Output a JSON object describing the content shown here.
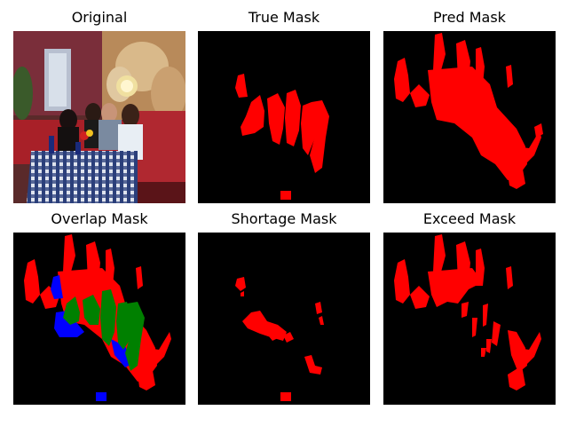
{
  "panels": [
    {
      "title": "Original"
    },
    {
      "title": "True Mask"
    },
    {
      "title": "Pred Mask"
    },
    {
      "title": "Overlap Mask"
    },
    {
      "title": "Shortage Mask"
    },
    {
      "title": "Exceed Mask"
    }
  ],
  "colors": {
    "background": "#000000",
    "mask": "#ff0000",
    "overlap": "#008000",
    "shortage": "#0000ff",
    "page": "#ffffff"
  }
}
